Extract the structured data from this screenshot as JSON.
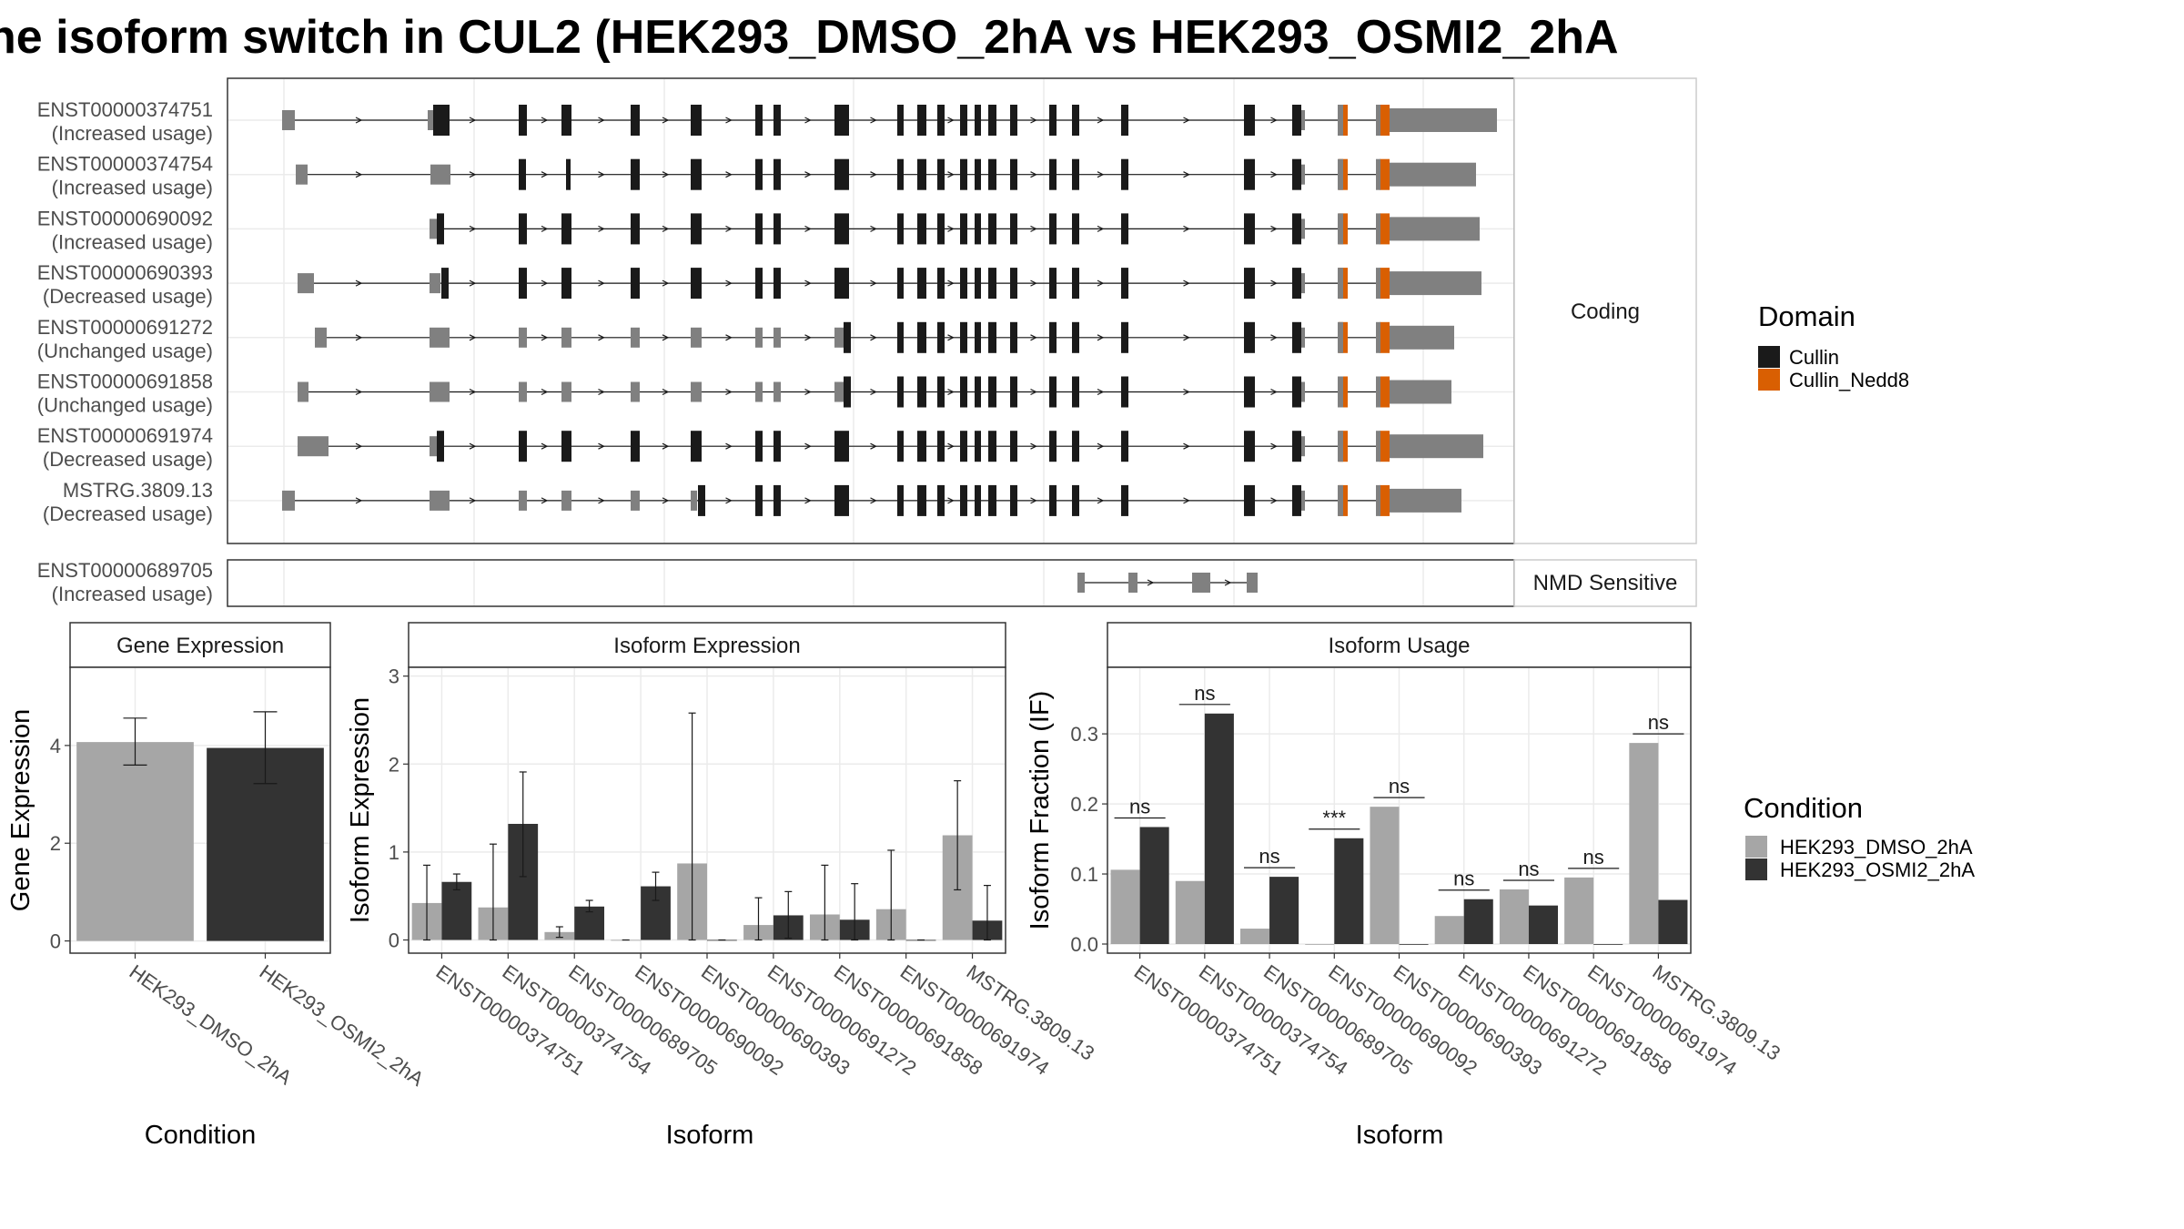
{
  "title": "he isoform switch in CUL2 (HEK293_DMSO_2hA vs HEK293_OSMI2_2hA",
  "colors": {
    "utr": "#808080",
    "cullin": "#1a1a1a",
    "cullin_nedd8": "#d95f02",
    "dmso": "#a6a6a6",
    "osmi2": "#333333",
    "panel_border": "#333333",
    "grid": "#ebebeb",
    "strip_fill": "#ffffff"
  },
  "structure": {
    "facet_labels": [
      "Coding",
      "NMD Sensitive"
    ],
    "coding_transcripts": [
      {
        "id": "ENST00000374751",
        "usage": "(Increased usage)"
      },
      {
        "id": "ENST00000374754",
        "usage": "(Increased usage)"
      },
      {
        "id": "ENST00000690092",
        "usage": "(Increased usage)"
      },
      {
        "id": "ENST00000690393",
        "usage": "(Decreased usage)"
      },
      {
        "id": "ENST00000691272",
        "usage": "(Unchanged usage)"
      },
      {
        "id": "ENST00000691858",
        "usage": "(Unchanged usage)"
      },
      {
        "id": "ENST00000691974",
        "usage": "(Decreased usage)"
      },
      {
        "id": "MSTRG.3809.13",
        "usage": "(Decreased usage)"
      }
    ],
    "nmd_transcripts": [
      {
        "id": "ENST00000689705",
        "usage": "(Increased usage)"
      }
    ],
    "legend": {
      "title": "Domain",
      "items": [
        {
          "label": "Cullin",
          "color": "#1a1a1a"
        },
        {
          "label": "Cullin_Nedd8",
          "color": "#d95f02"
        }
      ]
    }
  },
  "chart_data": [
    {
      "type": "bar",
      "strip": "Gene Expression",
      "xlabel": "Condition",
      "ylabel": "Gene Expression",
      "categories": [
        "HEK293_DMSO_2hA",
        "HEK293_OSMI2_2hA"
      ],
      "values": [
        4.07,
        3.95
      ],
      "error_low": [
        3.6,
        3.22
      ],
      "error_high": [
        4.56,
        4.69
      ],
      "yticks": [
        "0",
        "2",
        "4"
      ],
      "ylim": [
        -0.25,
        5.6
      ]
    },
    {
      "type": "bar",
      "strip": "Isoform Expression",
      "xlabel": "Isoform",
      "ylabel": "Isoform Expression",
      "categories": [
        "ENST00000374751",
        "ENST00000374754",
        "ENST00000689705",
        "ENST00000690092",
        "ENST00000690393",
        "ENST00000691272",
        "ENST00000691858",
        "ENST00000691974",
        "MSTRG.3809.13"
      ],
      "series": [
        {
          "name": "HEK293_DMSO_2hA",
          "values": [
            0.42,
            0.37,
            0.09,
            0.0,
            0.87,
            0.17,
            0.29,
            0.35,
            1.19
          ],
          "error_low": [
            0.0,
            0.0,
            0.03,
            0.0,
            0.0,
            0.0,
            0.0,
            0.0,
            0.57
          ],
          "error_high": [
            0.85,
            1.09,
            0.15,
            0.0,
            2.58,
            0.48,
            0.85,
            1.02,
            1.81
          ]
        },
        {
          "name": "HEK293_OSMI2_2hA",
          "values": [
            0.66,
            1.32,
            0.38,
            0.61,
            0.0,
            0.28,
            0.23,
            0.0,
            0.22
          ],
          "error_low": [
            0.57,
            0.72,
            0.32,
            0.45,
            0.0,
            0.02,
            0.0,
            0.0,
            0.0
          ],
          "error_high": [
            0.75,
            1.91,
            0.45,
            0.77,
            0.0,
            0.55,
            0.64,
            0.0,
            0.62
          ]
        }
      ],
      "yticks": [
        "0",
        "1",
        "2",
        "3"
      ],
      "ylim": [
        -0.15,
        3.1
      ]
    },
    {
      "type": "bar",
      "strip": "Isoform Usage",
      "xlabel": "Isoform",
      "ylabel": "Isoform Fraction (IF)",
      "categories": [
        "ENST00000374751",
        "ENST00000374754",
        "ENST00000689705",
        "ENST00000690092",
        "ENST00000690393",
        "ENST00000691272",
        "ENST00000691858",
        "ENST00000691974",
        "MSTRG.3809.13"
      ],
      "series": [
        {
          "name": "HEK293_DMSO_2hA",
          "values": [
            0.106,
            0.09,
            0.022,
            0.0,
            0.196,
            0.04,
            0.078,
            0.095,
            0.287
          ]
        },
        {
          "name": "HEK293_OSMI2_2hA",
          "values": [
            0.167,
            0.329,
            0.096,
            0.151,
            0.0,
            0.064,
            0.055,
            0.0,
            0.063
          ]
        }
      ],
      "significance": [
        "ns",
        "ns",
        "ns",
        "***",
        "ns",
        "ns",
        "ns",
        "ns",
        "ns"
      ],
      "yticks": [
        "0.0",
        "0.1",
        "0.2",
        "0.3"
      ],
      "ylim": [
        -0.013,
        0.395
      ]
    }
  ],
  "condition_legend": {
    "title": "Condition",
    "items": [
      {
        "label": "HEK293_DMSO_2hA",
        "color": "#a6a6a6"
      },
      {
        "label": "HEK293_OSMI2_2hA",
        "color": "#333333"
      }
    ]
  }
}
